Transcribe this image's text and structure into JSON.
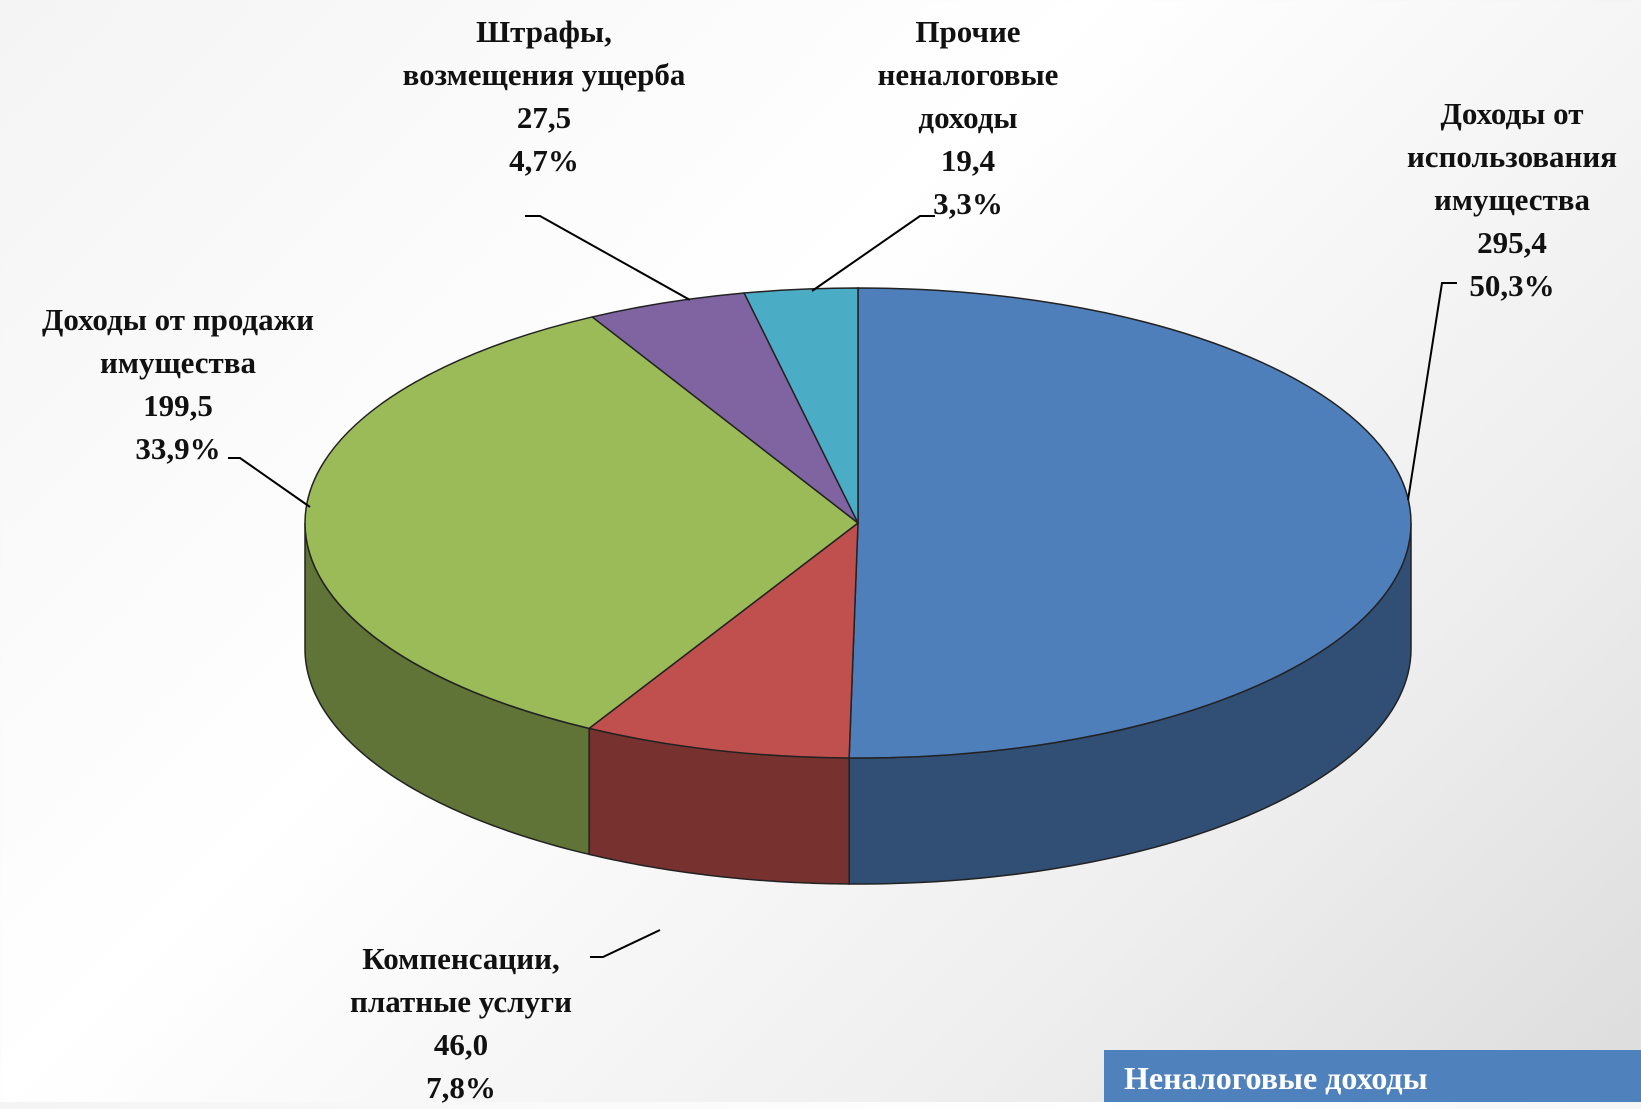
{
  "chart_data": {
    "type": "pie3d",
    "title": "Неналоговые доходы",
    "categories": [
      "Доходы от\nиспользования\nимущества",
      "Компенсации,\nплатные услуги",
      "Доходы от продажи\nимущества",
      "Штрафы,\nвозмещения ущерба",
      "Прочие\nненалоговые\nдоходы"
    ],
    "values": [
      295.4,
      46.0,
      199.5,
      27.5,
      19.4
    ],
    "value_labels": [
      "295,4",
      "46,0",
      "199,5",
      "27,5",
      "19,4"
    ],
    "shares": [
      50.3,
      7.8,
      33.9,
      4.7,
      3.3
    ],
    "share_labels": [
      "50,3%",
      "7,8%",
      "33,9%",
      "4,7%",
      "3,3%"
    ],
    "colors": [
      "#4f7fbb",
      "#c0504d",
      "#9bbb59",
      "#8064a2",
      "#4bacc6"
    ]
  }
}
